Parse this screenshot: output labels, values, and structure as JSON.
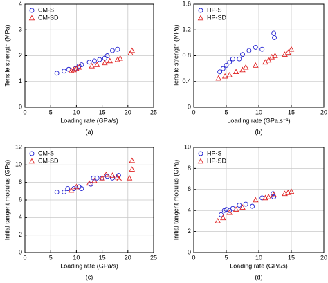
{
  "chart_data": [
    {
      "type": "scatter",
      "caption": "(a)",
      "xlabel": "Loading rate (GPa/s)",
      "ylabel": "Tensile strength (MPa)",
      "xlim": [
        0,
        25
      ],
      "ylim": [
        0,
        4
      ],
      "xticks": [
        0,
        5,
        10,
        15,
        20,
        25
      ],
      "yticks": [
        0,
        1,
        2,
        3,
        4
      ],
      "grid": true,
      "legend": "upper left",
      "series": [
        {
          "name": "CM-S",
          "color": "#1f1fd0",
          "marker": "circle",
          "x": [
            6.2,
            7.6,
            8.5,
            9.8,
            10.5,
            11,
            12.5,
            13.5,
            14.5,
            15.5,
            16,
            17,
            18
          ],
          "y": [
            1.32,
            1.4,
            1.47,
            1.5,
            1.6,
            1.65,
            1.75,
            1.8,
            1.85,
            1.9,
            2.0,
            2.2,
            2.25
          ]
        },
        {
          "name": "CM-SD",
          "color": "#e02020",
          "marker": "triangle",
          "x": [
            9,
            9.5,
            10,
            10.5,
            13,
            14,
            15.5,
            16.5,
            18,
            18.5,
            20.5,
            20.8
          ],
          "y": [
            1.42,
            1.45,
            1.5,
            1.55,
            1.6,
            1.65,
            1.72,
            1.8,
            1.85,
            1.9,
            2.1,
            2.2
          ]
        }
      ]
    },
    {
      "type": "scatter",
      "caption": "(b)",
      "xlabel": "Loading rate (GPa.s⁻¹)",
      "ylabel": "Tensile strength (MPa)",
      "xlim": [
        0,
        20
      ],
      "ylim": [
        0,
        1.6
      ],
      "xticks": [
        0,
        5,
        10,
        15,
        20
      ],
      "yticks": [
        0,
        0.4,
        0.8,
        1.2,
        1.6
      ],
      "grid": true,
      "legend": "upper left",
      "series": [
        {
          "name": "HP-S",
          "color": "#1f1fd0",
          "marker": "circle",
          "x": [
            4,
            4.5,
            5,
            5.5,
            6,
            7,
            7.5,
            8.5,
            9.5,
            10.5,
            12.3,
            12.4
          ],
          "y": [
            0.55,
            0.6,
            0.65,
            0.7,
            0.75,
            0.75,
            0.82,
            0.88,
            0.93,
            0.9,
            1.15,
            1.08
          ]
        },
        {
          "name": "HP-SD",
          "color": "#e02020",
          "marker": "triangle",
          "x": [
            3.8,
            4.8,
            5.5,
            6.5,
            7.5,
            8,
            9.5,
            11,
            11.5,
            12,
            12.5,
            14,
            14.5,
            15
          ],
          "y": [
            0.45,
            0.48,
            0.5,
            0.55,
            0.58,
            0.62,
            0.65,
            0.7,
            0.73,
            0.78,
            0.8,
            0.82,
            0.85,
            0.9
          ]
        }
      ]
    },
    {
      "type": "scatter",
      "caption": "(c)",
      "xlabel": "Loading rate (GPa/s)",
      "ylabel": "Initial tangent modulus (GPa)",
      "xlim": [
        0,
        25
      ],
      "ylim": [
        0,
        12
      ],
      "xticks": [
        0,
        5,
        10,
        15,
        20,
        25
      ],
      "yticks": [
        0,
        2,
        4,
        6,
        8,
        10,
        12
      ],
      "grid": true,
      "legend": "upper left",
      "series": [
        {
          "name": "CM-S",
          "color": "#1f1fd0",
          "marker": "circle",
          "x": [
            6.2,
            7.6,
            8.3,
            9.5,
            10.5,
            11,
            12.8,
            13.3,
            14,
            15,
            16,
            17,
            18.2
          ],
          "y": [
            6.9,
            6.9,
            7.3,
            7.3,
            7.5,
            7.3,
            7.8,
            8.5,
            8.5,
            8.5,
            8.7,
            8.5,
            8.8
          ]
        },
        {
          "name": "CM-SD",
          "color": "#e02020",
          "marker": "triangle",
          "x": [
            9,
            10,
            12.5,
            13.5,
            15,
            15.8,
            17,
            18,
            18.3,
            20.3,
            20.8,
            20.8
          ],
          "y": [
            7.1,
            7.5,
            7.9,
            8.2,
            8.5,
            8.9,
            8.8,
            8.6,
            8.4,
            8.5,
            9.5,
            10.5
          ]
        }
      ]
    },
    {
      "type": "scatter",
      "caption": "(d)",
      "xlabel": "Loading rate (GPa/s)",
      "ylabel": "Initial tangent modulus (GPa)",
      "xlim": [
        0,
        20
      ],
      "ylim": [
        0,
        10
      ],
      "xticks": [
        0,
        5,
        10,
        15,
        20
      ],
      "yticks": [
        0,
        2,
        4,
        6,
        8,
        10
      ],
      "grid": true,
      "legend": "upper left",
      "series": [
        {
          "name": "HP-S",
          "color": "#1f1fd0",
          "marker": "circle",
          "x": [
            4.2,
            4.7,
            5,
            5.5,
            6,
            7,
            8,
            9,
            10.5,
            12.2,
            12.3
          ],
          "y": [
            3.6,
            4.0,
            4.1,
            4.0,
            4.2,
            4.5,
            4.6,
            4.4,
            5.2,
            5.6,
            5.3
          ]
        },
        {
          "name": "HP-SD",
          "color": "#e02020",
          "marker": "triangle",
          "x": [
            3.7,
            4.5,
            5.5,
            6.5,
            7.5,
            9.5,
            11,
            11.5,
            12.3,
            14,
            14.5,
            15
          ],
          "y": [
            3.0,
            3.3,
            3.8,
            4.1,
            4.3,
            5.0,
            5.2,
            5.3,
            5.5,
            5.6,
            5.7,
            5.8
          ]
        }
      ]
    }
  ]
}
